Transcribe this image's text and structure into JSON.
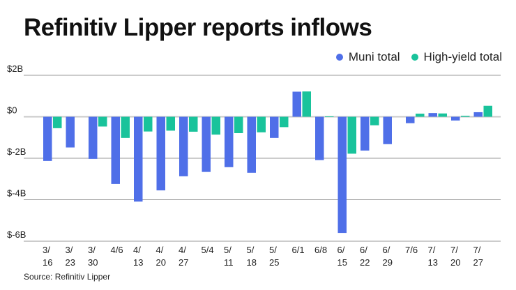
{
  "chart_data": {
    "type": "bar",
    "title": "Refinitiv Lipper reports inflows",
    "xlabel": "",
    "ylabel": "",
    "ylim": [
      -6,
      2
    ],
    "yticks": [
      {
        "value": 2,
        "label": "$2B"
      },
      {
        "value": 0,
        "label": "$0"
      },
      {
        "value": -2,
        "label": "$-2B"
      },
      {
        "value": -4,
        "label": "$-4B"
      },
      {
        "value": -6,
        "label": "$-6B"
      }
    ],
    "grid": true,
    "legend_position": "top-right",
    "categories": [
      [
        "3/",
        "16"
      ],
      [
        "3/",
        "23"
      ],
      [
        "3/",
        "30"
      ],
      [
        "4/6",
        ""
      ],
      [
        "4/",
        "13"
      ],
      [
        "4/",
        "20"
      ],
      [
        "4/",
        "27"
      ],
      [
        "5/4",
        ""
      ],
      [
        "5/",
        "11"
      ],
      [
        "5/",
        "18"
      ],
      [
        "5/",
        "25"
      ],
      [
        "6/1",
        ""
      ],
      [
        "6/8",
        ""
      ],
      [
        "6/",
        "15"
      ],
      [
        "6/",
        "22"
      ],
      [
        "6/",
        "29"
      ],
      [
        "7/6",
        ""
      ],
      [
        "7/",
        "13"
      ],
      [
        "7/",
        "20"
      ],
      [
        "7/",
        "27"
      ]
    ],
    "series": [
      {
        "name": "Muni total",
        "color": "#4f6fe8",
        "values": [
          -2.13,
          -1.48,
          -2.03,
          -3.24,
          -4.09,
          -3.55,
          -2.87,
          -2.66,
          -2.43,
          -2.7,
          -1.02,
          1.21,
          -2.09,
          -5.6,
          -1.63,
          -1.32,
          -0.31,
          0.18,
          -0.18,
          0.22
        ]
      },
      {
        "name": "High-yield total",
        "color": "#19c39b",
        "values": [
          -0.55,
          0.0,
          -0.47,
          -1.02,
          -0.71,
          -0.67,
          -0.72,
          -0.86,
          -0.79,
          -0.75,
          -0.5,
          1.22,
          0.02,
          -1.78,
          -0.41,
          0.0,
          0.15,
          0.16,
          0.05,
          0.53
        ]
      }
    ],
    "unit": "billions USD"
  },
  "source": "Source: Refinitiv Lipper"
}
